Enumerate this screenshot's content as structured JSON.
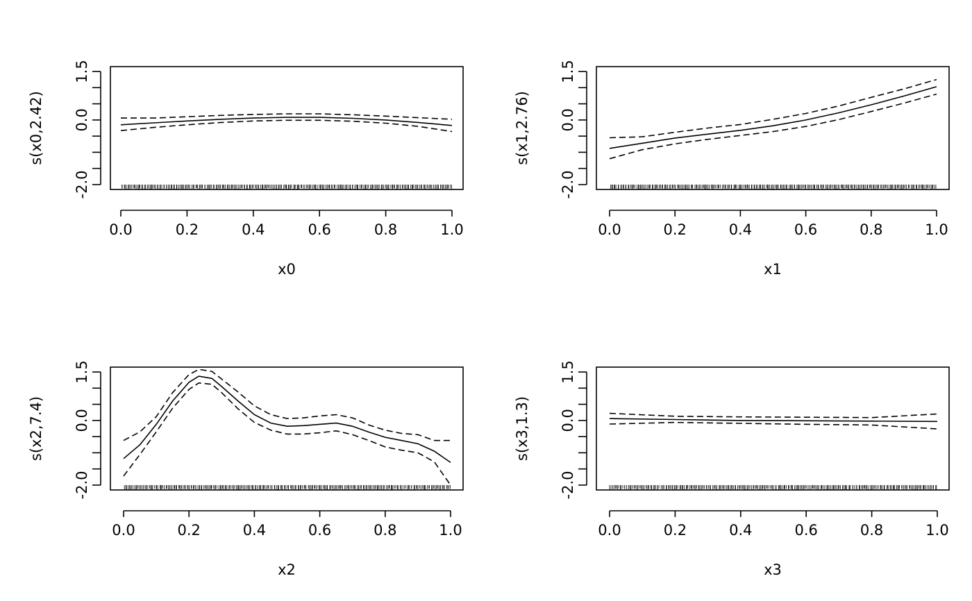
{
  "chart_data": [
    {
      "type": "line",
      "xlabel": "x0",
      "ylabel": "s(x0,2.42)",
      "xlim": [
        0,
        1
      ],
      "ylim": [
        -2.0,
        1.5
      ],
      "x_ticks": [
        {
          "v": 0.0,
          "label": "0.0"
        },
        {
          "v": 0.2,
          "label": "0.2"
        },
        {
          "v": 0.4,
          "label": "0.4"
        },
        {
          "v": 0.6,
          "label": "0.6"
        },
        {
          "v": 0.8,
          "label": "0.8"
        },
        {
          "v": 1.0,
          "label": "1.0"
        }
      ],
      "y_ticks": [
        -2.0,
        -1.5,
        -1.0,
        -0.5,
        0.0,
        0.5,
        1.0,
        1.5
      ],
      "y_tick_labels": [
        {
          "v": -2.0,
          "label": "-2.0"
        },
        {
          "v": 0.0,
          "label": "0.0"
        },
        {
          "v": 1.5,
          "label": "1.5"
        }
      ],
      "x": [
        0.0,
        0.1,
        0.2,
        0.3,
        0.4,
        0.5,
        0.6,
        0.7,
        0.8,
        0.9,
        1.0
      ],
      "series": [
        {
          "role": "fit",
          "values": [
            -0.15,
            -0.09,
            -0.03,
            0.02,
            0.06,
            0.08,
            0.08,
            0.05,
            0.0,
            -0.08,
            -0.17
          ]
        },
        {
          "role": "upper",
          "values": [
            0.06,
            0.06,
            0.1,
            0.14,
            0.17,
            0.19,
            0.19,
            0.16,
            0.12,
            0.07,
            0.02
          ]
        },
        {
          "role": "lower",
          "values": [
            -0.33,
            -0.23,
            -0.15,
            -0.08,
            -0.03,
            -0.01,
            -0.01,
            -0.04,
            -0.1,
            -0.2,
            -0.36
          ]
        }
      ],
      "rug_seed": 11
    },
    {
      "type": "line",
      "xlabel": "x1",
      "ylabel": "s(x1,2.76)",
      "xlim": [
        0,
        1
      ],
      "ylim": [
        -2.0,
        1.5
      ],
      "x_ticks": [
        {
          "v": 0.0,
          "label": "0.0"
        },
        {
          "v": 0.2,
          "label": "0.2"
        },
        {
          "v": 0.4,
          "label": "0.4"
        },
        {
          "v": 0.6,
          "label": "0.6"
        },
        {
          "v": 0.8,
          "label": "0.8"
        },
        {
          "v": 1.0,
          "label": "1.0"
        }
      ],
      "y_ticks": [
        -2.0,
        -1.5,
        -1.0,
        -0.5,
        0.0,
        0.5,
        1.0,
        1.5
      ],
      "y_tick_labels": [
        {
          "v": -2.0,
          "label": "-2.0"
        },
        {
          "v": 0.0,
          "label": "0.0"
        },
        {
          "v": 1.5,
          "label": "1.5"
        }
      ],
      "x": [
        0.0,
        0.1,
        0.2,
        0.3,
        0.4,
        0.5,
        0.6,
        0.7,
        0.8,
        0.9,
        1.0
      ],
      "series": [
        {
          "role": "fit",
          "values": [
            -0.88,
            -0.72,
            -0.56,
            -0.44,
            -0.32,
            -0.18,
            0.0,
            0.22,
            0.47,
            0.74,
            1.03
          ]
        },
        {
          "role": "upper",
          "values": [
            -0.55,
            -0.52,
            -0.38,
            -0.25,
            -0.14,
            0.02,
            0.2,
            0.43,
            0.7,
            0.96,
            1.25
          ]
        },
        {
          "role": "lower",
          "values": [
            -1.2,
            -0.92,
            -0.74,
            -0.6,
            -0.48,
            -0.36,
            -0.2,
            0.01,
            0.26,
            0.52,
            0.8
          ]
        }
      ],
      "rug_seed": 23
    },
    {
      "type": "line",
      "xlabel": "x2",
      "ylabel": "s(x2,7.4)",
      "xlim": [
        0,
        1
      ],
      "ylim": [
        -2.0,
        1.5
      ],
      "x_ticks": [
        {
          "v": 0.0,
          "label": "0.0"
        },
        {
          "v": 0.2,
          "label": "0.2"
        },
        {
          "v": 0.4,
          "label": "0.4"
        },
        {
          "v": 0.6,
          "label": "0.6"
        },
        {
          "v": 0.8,
          "label": "0.8"
        },
        {
          "v": 1.0,
          "label": "1.0"
        }
      ],
      "y_ticks": [
        -2.0,
        -1.5,
        -1.0,
        -0.5,
        0.0,
        0.5,
        1.0,
        1.5
      ],
      "y_tick_labels": [
        {
          "v": -2.0,
          "label": "-2.0"
        },
        {
          "v": 0.0,
          "label": "0.0"
        },
        {
          "v": 1.5,
          "label": "1.5"
        }
      ],
      "x": [
        0.0,
        0.05,
        0.1,
        0.15,
        0.2,
        0.23,
        0.27,
        0.3,
        0.35,
        0.4,
        0.45,
        0.5,
        0.55,
        0.6,
        0.65,
        0.7,
        0.75,
        0.8,
        0.85,
        0.9,
        0.95,
        1.0
      ],
      "series": [
        {
          "role": "fit",
          "values": [
            -1.18,
            -0.75,
            -0.12,
            0.6,
            1.18,
            1.37,
            1.3,
            1.05,
            0.6,
            0.18,
            -0.08,
            -0.18,
            -0.16,
            -0.12,
            -0.08,
            -0.18,
            -0.36,
            -0.52,
            -0.62,
            -0.72,
            -0.95,
            -1.3
          ]
        },
        {
          "role": "upper",
          "values": [
            -0.62,
            -0.35,
            0.12,
            0.86,
            1.42,
            1.58,
            1.52,
            1.28,
            0.88,
            0.45,
            0.18,
            0.06,
            0.08,
            0.14,
            0.18,
            0.08,
            -0.14,
            -0.3,
            -0.4,
            -0.44,
            -0.62,
            -0.62
          ]
        },
        {
          "role": "lower",
          "values": [
            -1.72,
            -1.05,
            -0.35,
            0.38,
            0.96,
            1.16,
            1.12,
            0.86,
            0.36,
            -0.06,
            -0.3,
            -0.42,
            -0.42,
            -0.38,
            -0.32,
            -0.44,
            -0.62,
            -0.82,
            -0.92,
            -1.0,
            -1.28,
            -2.0
          ]
        }
      ],
      "rug_seed": 37
    },
    {
      "type": "line",
      "xlabel": "x3",
      "ylabel": "s(x3,1.3)",
      "xlim": [
        0,
        1
      ],
      "ylim": [
        -2.0,
        1.5
      ],
      "x_ticks": [
        {
          "v": 0.0,
          "label": "0.0"
        },
        {
          "v": 0.2,
          "label": "0.2"
        },
        {
          "v": 0.4,
          "label": "0.4"
        },
        {
          "v": 0.6,
          "label": "0.6"
        },
        {
          "v": 0.8,
          "label": "0.8"
        },
        {
          "v": 1.0,
          "label": "1.0"
        }
      ],
      "y_ticks": [
        -2.0,
        -1.5,
        -1.0,
        -0.5,
        0.0,
        0.5,
        1.0,
        1.5
      ],
      "y_tick_labels": [
        {
          "v": -2.0,
          "label": "-2.0"
        },
        {
          "v": 0.0,
          "label": "0.0"
        },
        {
          "v": 1.5,
          "label": "1.5"
        }
      ],
      "x": [
        0.0,
        0.2,
        0.4,
        0.6,
        0.8,
        1.0
      ],
      "series": [
        {
          "role": "fit",
          "values": [
            0.06,
            0.03,
            0.0,
            -0.01,
            -0.02,
            -0.03
          ]
        },
        {
          "role": "upper",
          "values": [
            0.22,
            0.13,
            0.11,
            0.1,
            0.09,
            0.2
          ]
        },
        {
          "role": "lower",
          "values": [
            -0.11,
            -0.06,
            -0.09,
            -0.12,
            -0.14,
            -0.26
          ]
        }
      ],
      "rug_seed": 53
    }
  ]
}
